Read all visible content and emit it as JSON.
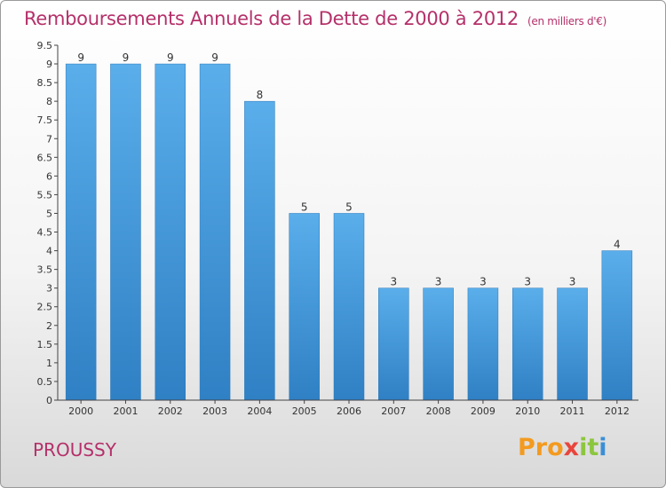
{
  "chart_data": {
    "type": "bar",
    "title": "Remboursements Annuels de la Dette de 2000 à 2012",
    "unit_note": "(en milliers d'€)",
    "categories": [
      "2000",
      "2001",
      "2002",
      "2003",
      "2004",
      "2005",
      "2006",
      "2007",
      "2008",
      "2009",
      "2010",
      "2011",
      "2012"
    ],
    "values": [
      9,
      9,
      9,
      9,
      8,
      5,
      5,
      3,
      3,
      3,
      3,
      3,
      4
    ],
    "data_labels": [
      "9",
      "9",
      "9",
      "9",
      "8",
      "5",
      "5",
      "3",
      "3",
      "3",
      "3",
      "3",
      "4"
    ],
    "ylim": [
      0,
      9.5
    ],
    "yticks": [
      "0",
      "0.5",
      "1",
      "1.5",
      "2",
      "2.5",
      "3",
      "3.5",
      "4",
      "4.5",
      "5",
      "5.5",
      "6",
      "6.5",
      "7",
      "7.5",
      "8",
      "8.5",
      "9",
      "9.5"
    ],
    "xlabel": "",
    "ylabel": "",
    "grid": false,
    "bar_color": "#4a9fe0"
  },
  "place_name": "PROUSSY",
  "logo": {
    "p1": "Pro",
    "p2": "x",
    "p3": "it",
    "p4": "i"
  }
}
